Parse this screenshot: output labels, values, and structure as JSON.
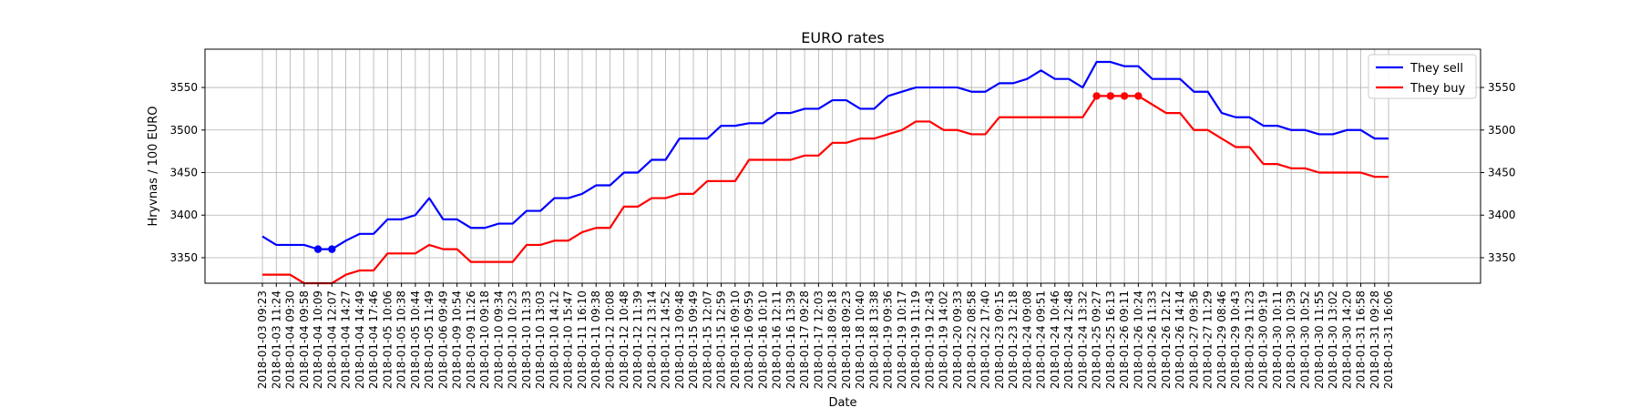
{
  "colors": {
    "sell": "#0000ff",
    "buy": "#ff0000",
    "grid": "#b0b0b0",
    "axes": "#000000"
  },
  "chart_data": {
    "type": "line",
    "title": "EURO rates",
    "xlabel": "Date",
    "ylabel": "Hryvnas / 100 EURO",
    "ylim": [
      3320,
      3595
    ],
    "yticks": [
      3350,
      3400,
      3450,
      3500,
      3550
    ],
    "grid": true,
    "legend_position": "top-right",
    "categories": [
      "2018-01-03 09:23",
      "2018-01-03 11:24",
      "2018-01-04 09:30",
      "2018-01-04 09:58",
      "2018-01-04 10:09",
      "2018-01-04 12:07",
      "2018-01-04 14:27",
      "2018-01-04 14:49",
      "2018-01-04 17:46",
      "2018-01-05 10:06",
      "2018-01-05 10:38",
      "2018-01-05 10:44",
      "2018-01-05 11:49",
      "2018-01-06 09:49",
      "2018-01-09 10:54",
      "2018-01-09 11:26",
      "2018-01-10 09:18",
      "2018-01-10 09:34",
      "2018-01-10 10:23",
      "2018-01-10 11:33",
      "2018-01-10 13:03",
      "2018-01-10 14:12",
      "2018-01-10 15:47",
      "2018-01-11 16:10",
      "2018-01-11 09:38",
      "2018-01-12 10:08",
      "2018-01-12 10:48",
      "2018-01-12 11:39",
      "2018-01-12 13:14",
      "2018-01-12 14:52",
      "2018-01-13 09:48",
      "2018-01-15 09:49",
      "2018-01-15 12:07",
      "2018-01-15 12:59",
      "2018-01-16 09:10",
      "2018-01-16 09:59",
      "2018-01-16 10:10",
      "2018-01-16 12:11",
      "2018-01-16 13:39",
      "2018-01-17 09:28",
      "2018-01-17 12:03",
      "2018-01-18 09:18",
      "2018-01-18 09:23",
      "2018-01-18 10:40",
      "2018-01-18 13:38",
      "2018-01-19 09:36",
      "2018-01-19 10:17",
      "2018-01-19 11:19",
      "2018-01-19 12:43",
      "2018-01-19 14:02",
      "2018-01-20 09:33",
      "2018-01-22 08:58",
      "2018-01-22 17:40",
      "2018-01-23 09:15",
      "2018-01-23 12:18",
      "2018-01-24 09:08",
      "2018-01-24 09:51",
      "2018-01-24 10:46",
      "2018-01-24 12:48",
      "2018-01-24 13:32",
      "2018-01-25 09:27",
      "2018-01-25 16:13",
      "2018-01-26 09:11",
      "2018-01-26 10:24",
      "2018-01-26 11:33",
      "2018-01-26 12:12",
      "2018-01-26 14:14",
      "2018-01-27 09:36",
      "2018-01-27 11:29",
      "2018-01-29 08:46",
      "2018-01-29 10:43",
      "2018-01-29 11:23",
      "2018-01-30 09:19",
      "2018-01-30 10:11",
      "2018-01-30 10:39",
      "2018-01-30 10:52",
      "2018-01-30 11:55",
      "2018-01-30 13:02",
      "2018-01-30 14:20",
      "2018-01-31 16:58",
      "2018-01-31 09:28",
      "2018-01-31 16:06"
    ],
    "series": [
      {
        "name": "They sell",
        "color": "#0000ff",
        "values": [
          3375,
          3365,
          3365,
          3365,
          3360,
          3360,
          3370,
          3378,
          3378,
          3395,
          3395,
          3400,
          3420,
          3395,
          3395,
          3385,
          3385,
          3390,
          3390,
          3405,
          3405,
          3420,
          3420,
          3425,
          3435,
          3435,
          3450,
          3450,
          3465,
          3465,
          3490,
          3490,
          3490,
          3505,
          3505,
          3508,
          3508,
          3520,
          3520,
          3525,
          3525,
          3535,
          3535,
          3525,
          3525,
          3540,
          3545,
          3550,
          3550,
          3550,
          3550,
          3545,
          3545,
          3555,
          3555,
          3560,
          3570,
          3560,
          3560,
          3550,
          3580,
          3580,
          3575,
          3575,
          3560,
          3560,
          3560,
          3545,
          3545,
          3520,
          3515,
          3515,
          3505,
          3505,
          3500,
          3500,
          3495,
          3495,
          3500,
          3500,
          3490,
          3490
        ],
        "markers": [
          4,
          5
        ]
      },
      {
        "name": "They buy",
        "color": "#ff0000",
        "values": [
          3330,
          3330,
          3330,
          3320,
          3320,
          3320,
          3330,
          3335,
          3335,
          3355,
          3355,
          3355,
          3365,
          3360,
          3360,
          3345,
          3345,
          3345,
          3345,
          3365,
          3365,
          3370,
          3370,
          3380,
          3385,
          3385,
          3410,
          3410,
          3420,
          3420,
          3425,
          3425,
          3440,
          3440,
          3440,
          3465,
          3465,
          3465,
          3465,
          3470,
          3470,
          3485,
          3485,
          3490,
          3490,
          3495,
          3500,
          3510,
          3510,
          3500,
          3500,
          3495,
          3495,
          3515,
          3515,
          3515,
          3515,
          3515,
          3515,
          3515,
          3540,
          3540,
          3540,
          3540,
          3530,
          3520,
          3520,
          3500,
          3500,
          3490,
          3480,
          3480,
          3460,
          3460,
          3455,
          3455,
          3450,
          3450,
          3450,
          3450,
          3445,
          3445
        ],
        "markers": [
          60,
          61,
          62,
          63
        ]
      }
    ]
  }
}
